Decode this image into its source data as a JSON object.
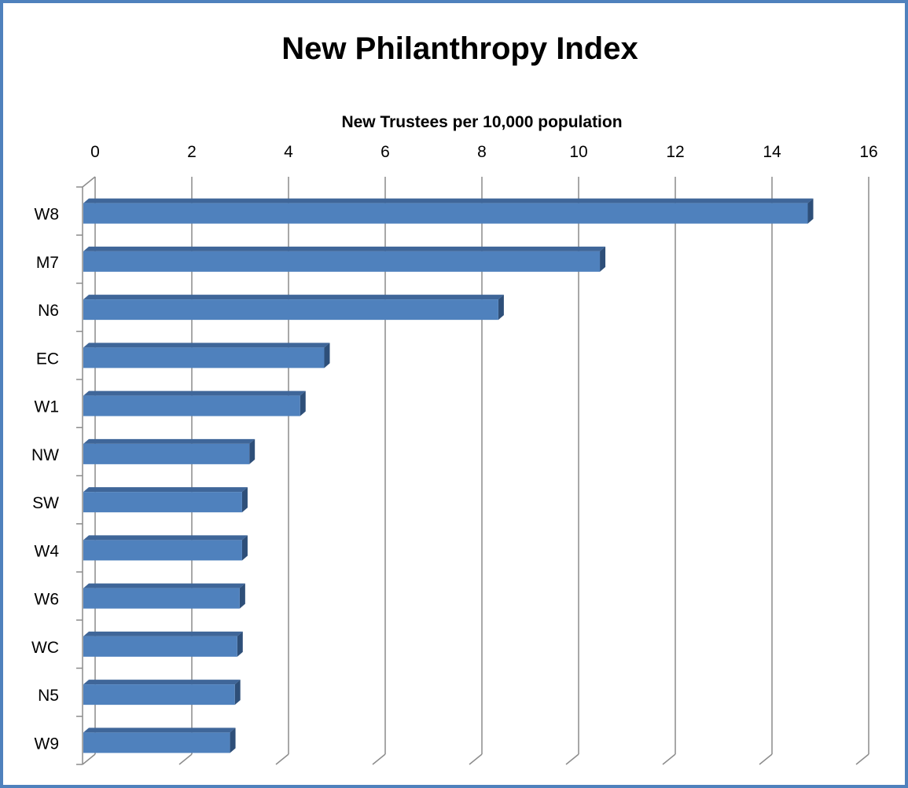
{
  "chart_data": {
    "type": "bar",
    "orientation": "horizontal",
    "title": "New Philanthropy Index",
    "xlabel": "New Trustees per 10,000 population",
    "ylabel": "",
    "xaxis_position": "top",
    "xlim": [
      0,
      16
    ],
    "xticks": [
      0,
      2,
      4,
      6,
      8,
      10,
      12,
      14,
      16
    ],
    "grid": true,
    "legend": "none",
    "categories": [
      "W8",
      "M7",
      "N6",
      "EC",
      "W1",
      "NW",
      "SW",
      "W4",
      "W6",
      "WC",
      "N5",
      "W9"
    ],
    "values": [
      15.0,
      10.7,
      8.6,
      5.0,
      4.5,
      3.45,
      3.3,
      3.3,
      3.25,
      3.2,
      3.15,
      3.05
    ],
    "colors": {
      "bar_front": "#4f81bd",
      "bar_top": "#3f6699",
      "bar_side": "#2e4f79",
      "frame": "#4f81bd",
      "grid": "#8c8c8c"
    }
  }
}
